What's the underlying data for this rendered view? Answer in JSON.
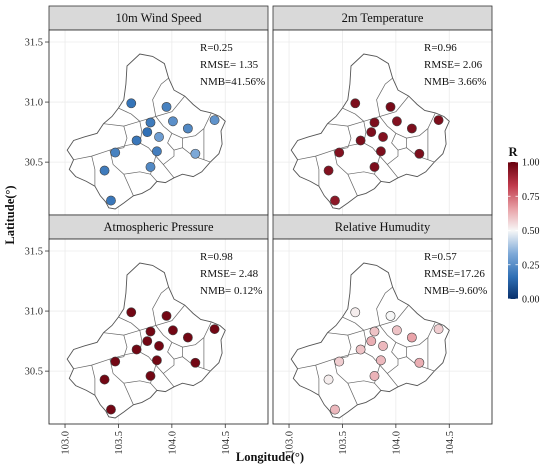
{
  "chart_data": {
    "type": "scatter",
    "xlabel": "Longitude(°)",
    "ylabel": "Latitude(°)",
    "xlim": [
      102.85,
      104.9
    ],
    "ylim": [
      30.06,
      31.6
    ],
    "x_ticks": [
      "103.0",
      "103.5",
      "104.0",
      "104.5"
    ],
    "y_ticks": [
      "30.5",
      "31.0",
      "31.5"
    ],
    "colorbar": {
      "title": "R",
      "range": [
        0,
        1
      ],
      "ticks": [
        "0.00",
        "0.25",
        "0.50",
        "0.75",
        "1.00"
      ],
      "colors": [
        "#08306b",
        "#2f6fb5",
        "#7ea9d8",
        "#f7f7f7",
        "#e8a0a6",
        "#c0394b",
        "#67000d"
      ]
    },
    "stations": [
      {
        "lon": 103.62,
        "lat": 30.99
      },
      {
        "lon": 103.95,
        "lat": 30.96
      },
      {
        "lon": 103.8,
        "lat": 30.83
      },
      {
        "lon": 104.01,
        "lat": 30.84
      },
      {
        "lon": 104.4,
        "lat": 30.85
      },
      {
        "lon": 103.77,
        "lat": 30.75
      },
      {
        "lon": 103.88,
        "lat": 30.71
      },
      {
        "lon": 104.15,
        "lat": 30.78
      },
      {
        "lon": 103.67,
        "lat": 30.68
      },
      {
        "lon": 103.47,
        "lat": 30.58
      },
      {
        "lon": 103.86,
        "lat": 30.59
      },
      {
        "lon": 104.22,
        "lat": 30.57
      },
      {
        "lon": 103.8,
        "lat": 30.46
      },
      {
        "lon": 103.37,
        "lat": 30.43
      },
      {
        "lon": 103.43,
        "lat": 30.18
      }
    ],
    "panels": [
      {
        "title": "10m Wind Speed",
        "stats": [
          "R=0.25",
          "RMSE= 1.35",
          "NMB=41.56%"
        ],
        "r_values": [
          0.18,
          0.22,
          0.2,
          0.26,
          0.27,
          0.17,
          0.3,
          0.24,
          0.19,
          0.22,
          0.21,
          0.33,
          0.24,
          0.2,
          0.19
        ]
      },
      {
        "title": "2m Temperature",
        "stats": [
          "R=0.96",
          "RMSE= 2.06",
          "NMB= 3.66%"
        ],
        "r_values": [
          0.96,
          0.97,
          0.96,
          0.95,
          0.96,
          0.96,
          0.95,
          0.96,
          0.96,
          0.95,
          0.96,
          0.96,
          0.96,
          0.95,
          0.93
        ]
      },
      {
        "title": "Atmospheric Pressure",
        "stats": [
          "R=0.98",
          "RMSE= 2.48",
          "NMB= 0.12%"
        ],
        "r_values": [
          0.98,
          0.98,
          0.98,
          0.98,
          0.98,
          0.98,
          0.98,
          0.98,
          0.98,
          0.98,
          0.98,
          0.98,
          0.98,
          0.98,
          0.98
        ]
      },
      {
        "title": "Relative Humudity",
        "stats": [
          "R=0.57",
          "RMSE=17.26",
          "NMB=-9.60%"
        ],
        "r_values": [
          0.52,
          0.5,
          0.6,
          0.6,
          0.58,
          0.64,
          0.62,
          0.66,
          0.6,
          0.58,
          0.62,
          0.64,
          0.63,
          0.52,
          0.62
        ]
      }
    ]
  }
}
